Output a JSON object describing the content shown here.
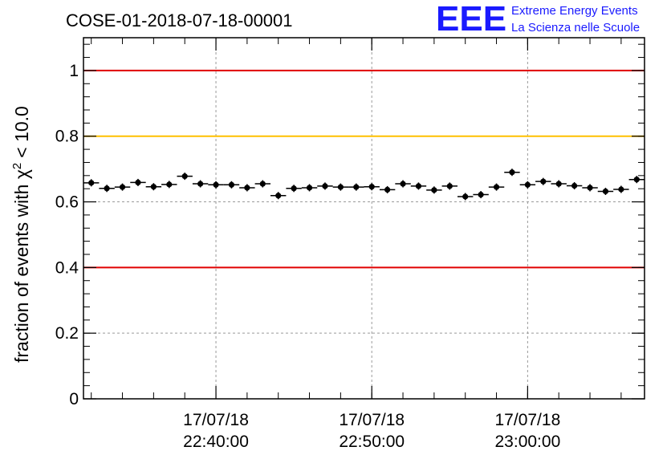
{
  "colors": {
    "frame": "#000000",
    "grid": "#9a9a9a",
    "red_line": "#e00000",
    "yellow_line": "#ffc000",
    "points": "#000000",
    "logo": "#1a1aff"
  },
  "logo": {
    "letters": "EEE",
    "line1": "Extreme Energy Events",
    "line2": "La Scienza nelle Scuole"
  },
  "chart_data": {
    "type": "scatter",
    "title": "COSE-01-2018-07-18-00001",
    "ylabel_prefix": "fraction of events with χ",
    "ylabel_superscript": "2",
    "ylabel_suffix": "< 10.0",
    "xlabel": "",
    "ylim": [
      0,
      1.1
    ],
    "xlim_minutes": [
      0,
      36
    ],
    "yticks": [
      {
        "value": 0,
        "label": "0"
      },
      {
        "value": 0.2,
        "label": "0.2"
      },
      {
        "value": 0.4,
        "label": "0.4"
      },
      {
        "value": 0.6,
        "label": "0.6"
      },
      {
        "value": 0.8,
        "label": "0.8"
      },
      {
        "value": 1.0,
        "label": "1"
      }
    ],
    "xticks": [
      {
        "minute": 8.5,
        "date": "17/07/18",
        "time": "22:40:00"
      },
      {
        "minute": 18.5,
        "date": "17/07/18",
        "time": "22:50:00"
      },
      {
        "minute": 28.5,
        "date": "17/07/18",
        "time": "23:00:00"
      }
    ],
    "reference_lines": [
      {
        "value": 1.0,
        "color": "red"
      },
      {
        "value": 0.8,
        "color": "yellow"
      },
      {
        "value": 0.4,
        "color": "red"
      }
    ],
    "grid": true,
    "series": [
      {
        "name": "fraction",
        "bin_width_minutes": 1,
        "x_minutes": [
          0,
          1,
          2,
          3,
          4,
          5,
          6,
          7,
          8,
          9,
          10,
          11,
          12,
          13,
          14,
          15,
          16,
          17,
          18,
          19,
          20,
          21,
          22,
          23,
          24,
          25,
          26,
          27,
          28,
          29,
          30,
          31,
          32,
          33,
          34,
          35
        ],
        "values": [
          0.658,
          0.641,
          0.645,
          0.659,
          0.646,
          0.653,
          0.678,
          0.655,
          0.652,
          0.652,
          0.643,
          0.655,
          0.619,
          0.641,
          0.643,
          0.648,
          0.645,
          0.645,
          0.646,
          0.637,
          0.655,
          0.648,
          0.636,
          0.648,
          0.616,
          0.622,
          0.645,
          0.69,
          0.652,
          0.662,
          0.655,
          0.649,
          0.643,
          0.632,
          0.638,
          0.668
        ],
        "error": 0.011
      }
    ]
  }
}
